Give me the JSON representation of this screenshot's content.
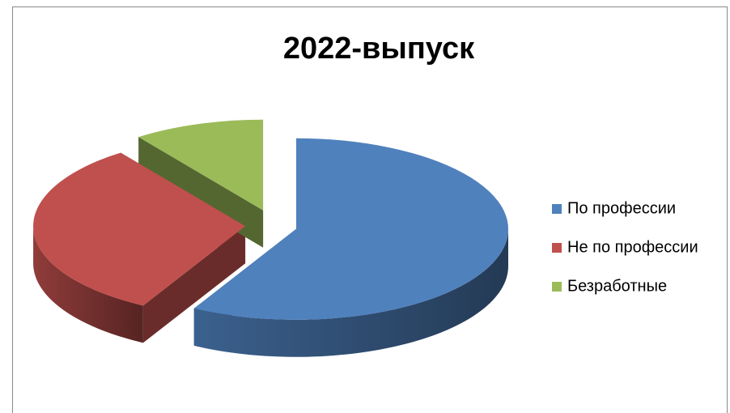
{
  "chart_data": {
    "type": "pie",
    "title": "2022-выпуск",
    "categories": [
      "По профессии",
      "Не по профессии",
      "Безработные"
    ],
    "values": [
      58,
      32,
      10
    ],
    "colors": [
      "#4f81bd",
      "#c0504d",
      "#9bbb59"
    ],
    "legend": "right"
  }
}
